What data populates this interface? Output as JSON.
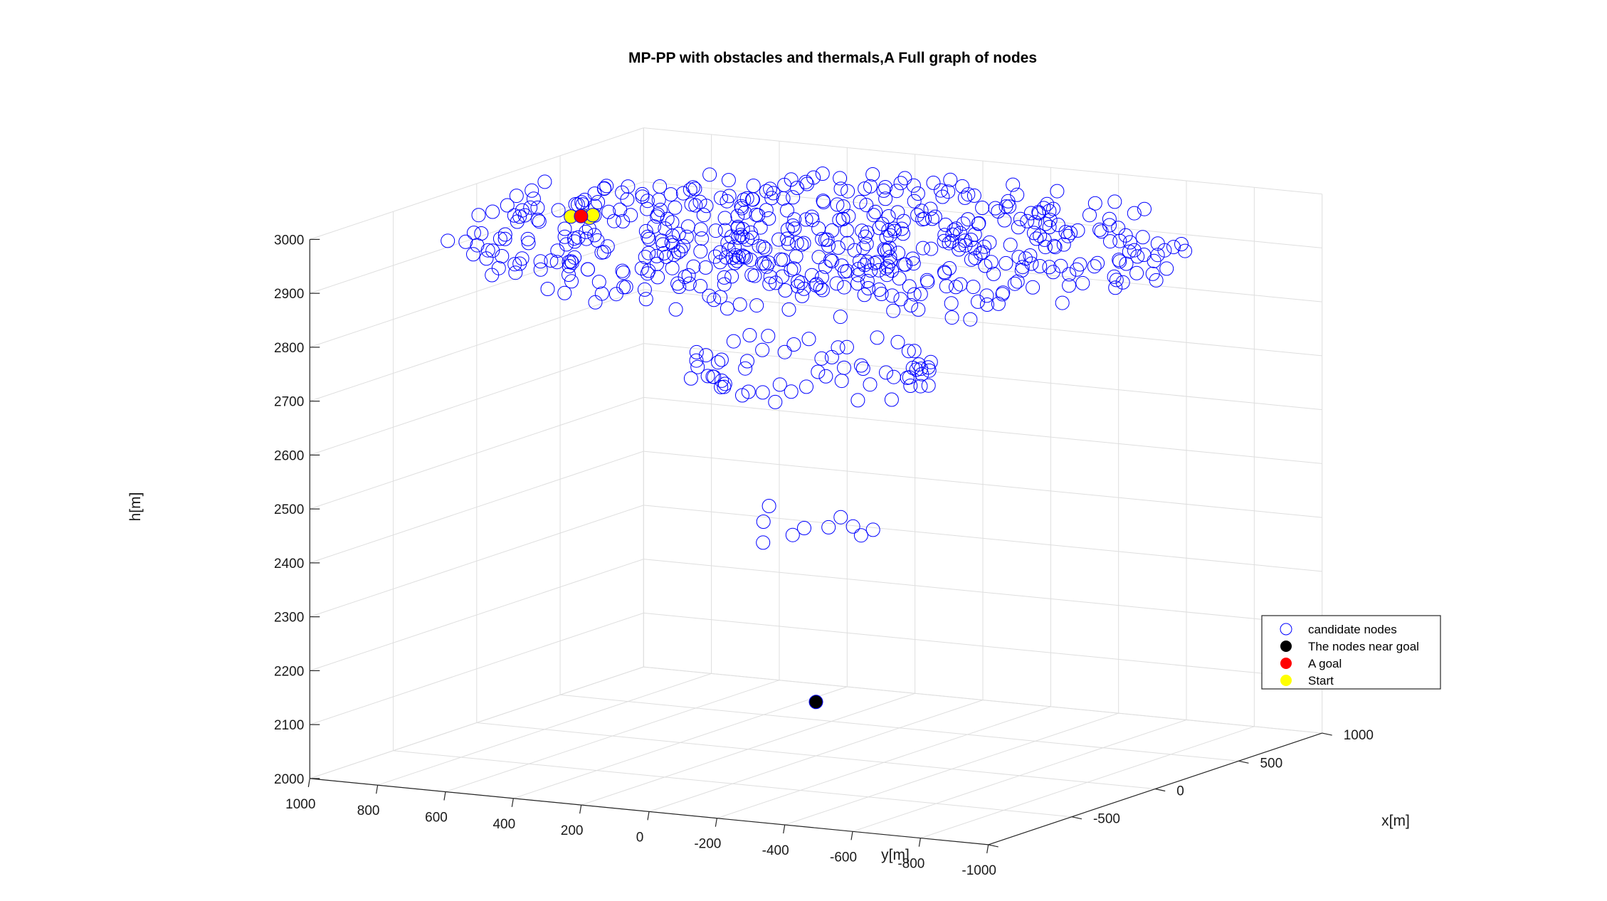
{
  "chart_data": {
    "type": "scatter",
    "title": "MP-PP with obstacles and thermals,A Full graph of nodes",
    "xlabel": "x[m]",
    "ylabel": "y[m]",
    "zlabel": "h[m]",
    "xlim": [
      -1000,
      1000
    ],
    "ylim": [
      -1000,
      1000
    ],
    "zlim": [
      2000,
      3000
    ],
    "x_ticks": [
      "-500",
      "0",
      "500",
      "1000"
    ],
    "y_ticks": [
      "1000",
      "800",
      "600",
      "400",
      "200",
      "0",
      "-200",
      "-400",
      "-600",
      "-800",
      "-1000"
    ],
    "z_ticks": [
      "2000",
      "2100",
      "2200",
      "2300",
      "2400",
      "2500",
      "2600",
      "2700",
      "2800",
      "2900",
      "3000"
    ],
    "grid": true,
    "legend_position": "east",
    "legend": [
      {
        "label": "candidate nodes",
        "marker": "open-circle",
        "color": "#0000ff"
      },
      {
        "label": "The nodes near goal",
        "marker": "filled-circle",
        "color": "#000000"
      },
      {
        "label": "A goal",
        "marker": "filled-circle",
        "color": "#ff0000"
      },
      {
        "label": "Start",
        "marker": "filled-circle",
        "color": "#ffff00"
      }
    ],
    "series": [
      {
        "name": "candidate nodes",
        "color": "#0000ff",
        "rings": [
          {
            "z": 2950,
            "radius": 880,
            "count": 195
          },
          {
            "z": 2960,
            "radius": 640,
            "count": 150
          },
          {
            "z": 2955,
            "radius": 420,
            "count": 120
          },
          {
            "z": 2950,
            "radius": 220,
            "count": 75
          },
          {
            "z": 2720,
            "radius": 300,
            "count": 62
          },
          {
            "z": 2420,
            "radius": 150,
            "count": 10
          }
        ]
      },
      {
        "name": "The nodes near goal",
        "color": "#000000",
        "points": [
          [
            0,
            0,
            2100
          ]
        ]
      },
      {
        "name": "A goal",
        "color": "#ff0000",
        "points": [
          [
            -310,
            540,
            3000
          ]
        ]
      },
      {
        "name": "Start",
        "color": "#ffff00",
        "points": [
          [
            -330,
            560,
            3000
          ],
          [
            -300,
            540,
            3000
          ],
          [
            -320,
            510,
            3000
          ],
          [
            -280,
            520,
            3000
          ]
        ]
      }
    ]
  }
}
